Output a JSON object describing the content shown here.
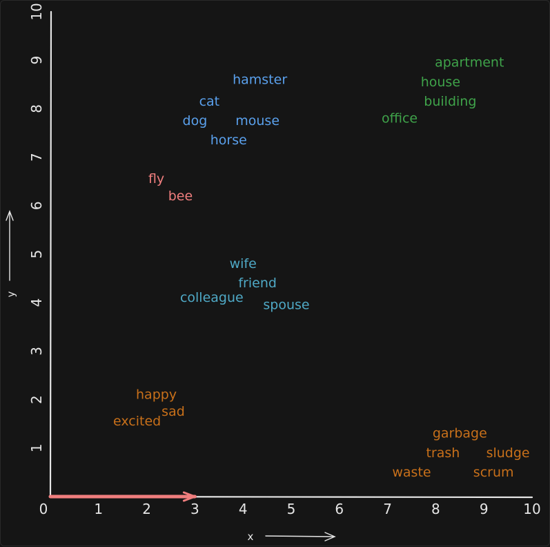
{
  "chart_data": {
    "type": "scatter",
    "xlabel": "x",
    "ylabel": "y",
    "xlim": [
      0,
      10
    ],
    "ylim": [
      0,
      10
    ],
    "x_ticks": [
      "0",
      "1",
      "2",
      "3",
      "4",
      "5",
      "6",
      "7",
      "8",
      "9",
      "10"
    ],
    "y_ticks": [
      "1",
      "2",
      "3",
      "4",
      "5",
      "6",
      "7",
      "8",
      "9",
      "10"
    ],
    "grid": false,
    "highlight_vector": {
      "from": [
        0,
        0
      ],
      "to": [
        3,
        0
      ],
      "color": "#f07e7e"
    },
    "colors": {
      "blue": "#5aa0ec",
      "green": "#3fa34a",
      "red": "#f07e7e",
      "teal": "#4fa9c6",
      "orange": "#c8701a",
      "axis": "#e6e6e6"
    },
    "points": [
      {
        "label": "hamster",
        "x": 4.35,
        "y": 8.6,
        "color": "blue"
      },
      {
        "label": "cat",
        "x": 3.3,
        "y": 8.15,
        "color": "blue"
      },
      {
        "label": "dog",
        "x": 3.0,
        "y": 7.75,
        "color": "blue"
      },
      {
        "label": "mouse",
        "x": 4.3,
        "y": 7.75,
        "color": "blue"
      },
      {
        "label": "horse",
        "x": 3.7,
        "y": 7.35,
        "color": "blue"
      },
      {
        "label": "apartment",
        "x": 8.7,
        "y": 8.95,
        "color": "green"
      },
      {
        "label": "house",
        "x": 8.1,
        "y": 8.55,
        "color": "green"
      },
      {
        "label": "building",
        "x": 8.3,
        "y": 8.15,
        "color": "green"
      },
      {
        "label": "office",
        "x": 7.25,
        "y": 7.8,
        "color": "green"
      },
      {
        "label": "fly",
        "x": 2.2,
        "y": 6.55,
        "color": "red"
      },
      {
        "label": "bee",
        "x": 2.7,
        "y": 6.2,
        "color": "red"
      },
      {
        "label": "wife",
        "x": 4.0,
        "y": 4.8,
        "color": "teal"
      },
      {
        "label": "friend",
        "x": 4.3,
        "y": 4.4,
        "color": "teal"
      },
      {
        "label": "colleague",
        "x": 3.35,
        "y": 4.1,
        "color": "teal"
      },
      {
        "label": "spouse",
        "x": 4.9,
        "y": 3.95,
        "color": "teal"
      },
      {
        "label": "happy",
        "x": 2.2,
        "y": 2.1,
        "color": "orange"
      },
      {
        "label": "sad",
        "x": 2.55,
        "y": 1.75,
        "color": "orange"
      },
      {
        "label": "excited",
        "x": 1.8,
        "y": 1.55,
        "color": "orange"
      },
      {
        "label": "garbage",
        "x": 8.5,
        "y": 1.3,
        "color": "orange"
      },
      {
        "label": "trash",
        "x": 8.15,
        "y": 0.9,
        "color": "orange"
      },
      {
        "label": "sludge",
        "x": 9.5,
        "y": 0.9,
        "color": "orange"
      },
      {
        "label": "waste",
        "x": 7.5,
        "y": 0.5,
        "color": "orange"
      },
      {
        "label": "scrum",
        "x": 9.2,
        "y": 0.5,
        "color": "orange"
      }
    ]
  }
}
